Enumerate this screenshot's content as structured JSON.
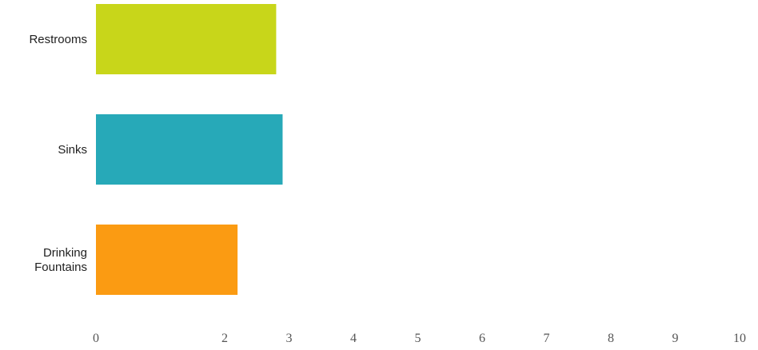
{
  "chart_data": {
    "type": "bar",
    "orientation": "horizontal",
    "title": "",
    "xlabel": "",
    "ylabel": "",
    "categories": [
      "Restrooms",
      "Sinks",
      "Drinking Fountains"
    ],
    "category_lines": [
      [
        "Restrooms"
      ],
      [
        "Sinks"
      ],
      [
        "Drinking",
        "Fountains"
      ]
    ],
    "values": [
      2.8,
      2.9,
      2.2
    ],
    "colors": [
      "#c8d61a",
      "#27a9b8",
      "#fb9b12"
    ],
    "x_ticks": [
      0,
      2,
      3,
      4,
      5,
      6,
      7,
      8,
      9,
      10
    ],
    "x_tick_labels": [
      "0",
      "2",
      "3",
      "4",
      "5",
      "6",
      "7",
      "8",
      "9",
      "10"
    ],
    "xlim": [
      0,
      10
    ],
    "grid": false,
    "legend": "none"
  }
}
